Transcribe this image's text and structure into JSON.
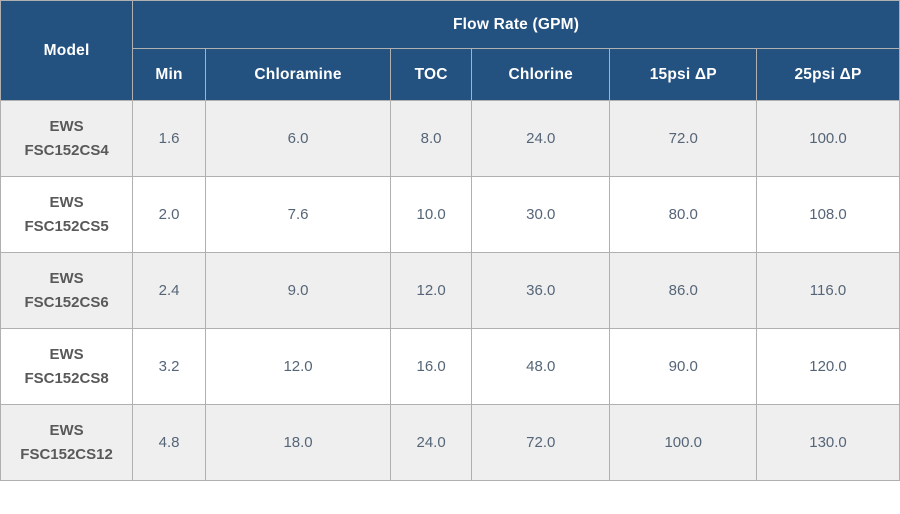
{
  "table": {
    "row_header": "Model",
    "group_header": "Flow Rate (GPM)",
    "columns": [
      "Min",
      "Chloramine",
      "TOC",
      "Chlorine",
      "15psi ΔP",
      "25psi ΔP"
    ],
    "rows": [
      {
        "model_line1": "EWS",
        "model_line2": "FSC152CS4",
        "values": [
          "1.6",
          "6.0",
          "8.0",
          "24.0",
          "72.0",
          "100.0"
        ]
      },
      {
        "model_line1": "EWS",
        "model_line2": "FSC152CS5",
        "values": [
          "2.0",
          "7.6",
          "10.0",
          "30.0",
          "80.0",
          "108.0"
        ]
      },
      {
        "model_line1": "EWS",
        "model_line2": "FSC152CS6",
        "values": [
          "2.4",
          "9.0",
          "12.0",
          "36.0",
          "86.0",
          "116.0"
        ]
      },
      {
        "model_line1": "EWS",
        "model_line2": "FSC152CS8",
        "values": [
          "3.2",
          "12.0",
          "16.0",
          "48.0",
          "90.0",
          "120.0"
        ]
      },
      {
        "model_line1": "EWS",
        "model_line2": "FSC152CS12",
        "values": [
          "4.8",
          "18.0",
          "24.0",
          "72.0",
          "100.0",
          "130.0"
        ]
      }
    ]
  },
  "colors": {
    "header_bg": "#235180",
    "header_text": "#ffffff",
    "alt_row_bg": "#efefef",
    "row_bg": "#ffffff",
    "border": "#b0b0b0",
    "model_text": "#595959",
    "value_text": "#556577"
  },
  "chart_data": {
    "type": "table",
    "title": "Flow Rate (GPM)",
    "row_header": "Model",
    "columns": [
      "Min",
      "Chloramine",
      "TOC",
      "Chlorine",
      "15psi ΔP",
      "25psi ΔP"
    ],
    "rows": [
      {
        "model": "EWS FSC152CS4",
        "values": [
          1.6,
          6.0,
          8.0,
          24.0,
          72.0,
          100.0
        ]
      },
      {
        "model": "EWS FSC152CS5",
        "values": [
          2.0,
          7.6,
          10.0,
          30.0,
          80.0,
          108.0
        ]
      },
      {
        "model": "EWS FSC152CS6",
        "values": [
          2.4,
          9.0,
          12.0,
          36.0,
          86.0,
          116.0
        ]
      },
      {
        "model": "EWS FSC152CS8",
        "values": [
          3.2,
          12.0,
          16.0,
          48.0,
          90.0,
          120.0
        ]
      },
      {
        "model": "EWS FSC152CS12",
        "values": [
          4.8,
          18.0,
          24.0,
          72.0,
          100.0,
          130.0
        ]
      }
    ]
  }
}
